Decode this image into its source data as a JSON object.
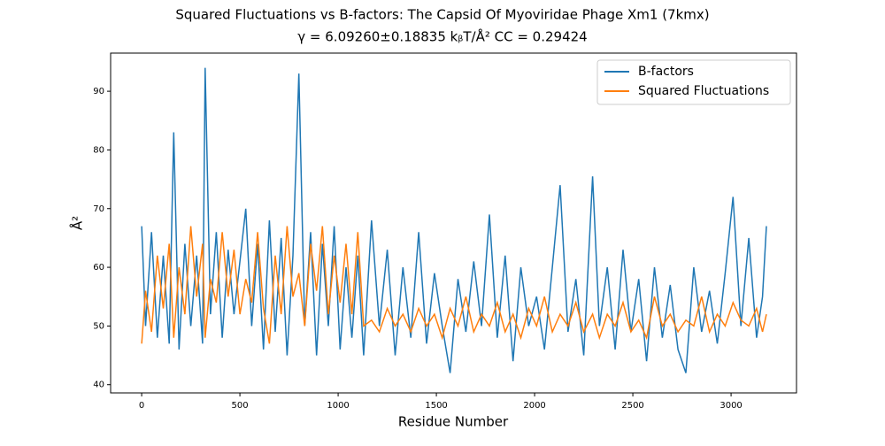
{
  "chart_data": {
    "type": "line",
    "title": "Squared Fluctuations vs B-factors: The Capsid Of Myoviridae Phage Xm1 (7kmx)",
    "subtitle": "γ = 6.09260±0.18835 kᵦT/Å²  CC = 0.29424",
    "x_label": "Residue Number",
    "y_label": "Å²",
    "x": [
      0,
      20,
      50,
      80,
      110,
      140,
      163,
      190,
      220,
      250,
      280,
      310,
      323,
      350,
      380,
      410,
      440,
      470,
      500,
      530,
      560,
      590,
      620,
      650,
      680,
      710,
      740,
      770,
      800,
      830,
      860,
      890,
      920,
      950,
      980,
      1010,
      1040,
      1070,
      1100,
      1130,
      1170,
      1210,
      1250,
      1290,
      1330,
      1370,
      1410,
      1450,
      1490,
      1530,
      1570,
      1610,
      1650,
      1690,
      1730,
      1770,
      1810,
      1850,
      1890,
      1930,
      1970,
      2010,
      2050,
      2090,
      2130,
      2170,
      2210,
      2250,
      2295,
      2330,
      2370,
      2410,
      2450,
      2490,
      2530,
      2570,
      2610,
      2650,
      2690,
      2730,
      2770,
      2810,
      2850,
      2890,
      2930,
      2970,
      3010,
      3050,
      3090,
      3130,
      3160,
      3180
    ],
    "series": [
      {
        "name": "B-factors",
        "color": "#1f77b4",
        "values": [
          67,
          50,
          66,
          48,
          62,
          47,
          83,
          46,
          64,
          50,
          62,
          47,
          94,
          52,
          66,
          48,
          63,
          52,
          61,
          70,
          50,
          64,
          46,
          68,
          49,
          65,
          45,
          62,
          93,
          50,
          66,
          45,
          64,
          50,
          67,
          46,
          60,
          48,
          62,
          45,
          68,
          50,
          63,
          45,
          60,
          48,
          66,
          47,
          59,
          50,
          42,
          58,
          49,
          61,
          50,
          69,
          48,
          62,
          44,
          60,
          50,
          55,
          46,
          60,
          74,
          49,
          58,
          45,
          75.5,
          50,
          60,
          46,
          63,
          49,
          58,
          44,
          60,
          48,
          57,
          46,
          42,
          60,
          49,
          56,
          47,
          59,
          72,
          50,
          65,
          48,
          55,
          67
        ]
      },
      {
        "name": "Squared Fluctuations",
        "color": "#ff7f0e",
        "values": [
          47,
          56,
          49,
          62,
          53,
          64,
          48,
          60,
          52,
          67,
          55,
          64,
          48,
          58,
          54,
          66,
          55,
          63,
          52,
          58,
          54,
          66,
          53,
          47,
          62,
          52,
          67,
          55,
          59,
          50,
          64,
          56,
          67,
          52,
          62,
          54,
          64,
          52,
          66,
          50,
          51,
          49,
          53,
          50,
          52,
          49,
          53,
          50,
          52,
          48,
          53,
          50,
          55,
          49,
          52,
          50,
          54,
          49,
          52,
          48,
          53,
          50,
          55,
          49,
          52,
          50,
          54,
          49,
          52,
          48,
          52,
          50,
          54,
          49,
          51,
          48,
          55,
          50,
          52,
          49,
          51,
          50,
          55,
          49,
          52,
          50,
          54,
          51,
          50,
          53,
          49,
          52
        ]
      }
    ],
    "xlim": [
      -158,
      3333
    ],
    "ylim": [
      38.6,
      96.5
    ],
    "xticks": [
      0,
      500,
      1000,
      1500,
      2000,
      2500,
      3000
    ],
    "yticks": [
      40,
      50,
      60,
      70,
      80,
      90
    ],
    "legend": "upper right"
  }
}
